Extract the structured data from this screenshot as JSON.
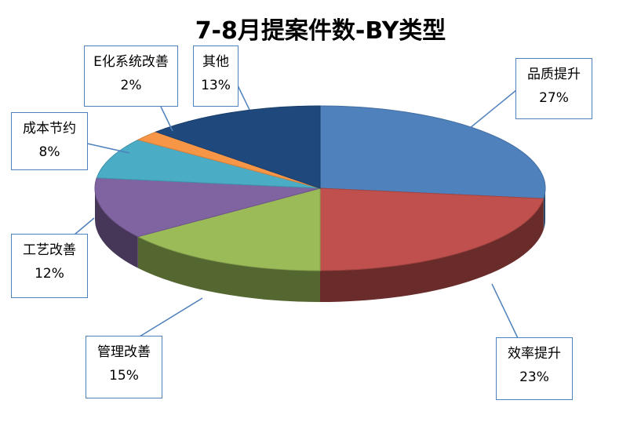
{
  "chart_data": {
    "type": "pie",
    "title": "7-8月提案件数-BY类型",
    "slices": [
      {
        "label": "品质提升",
        "value": 27,
        "value_label": "27%",
        "color": "#4f81bd"
      },
      {
        "label": "效率提升",
        "value": 23,
        "value_label": "23%",
        "color": "#c0504d"
      },
      {
        "label": "管理改善",
        "value": 15,
        "value_label": "15%",
        "color": "#9bbb59"
      },
      {
        "label": "工艺改善",
        "value": 12,
        "value_label": "12%",
        "color": "#8064a2"
      },
      {
        "label": "成本节约",
        "value": 8,
        "value_label": "8%",
        "color": "#4bacc6"
      },
      {
        "label": "E化系统改善",
        "value": 2,
        "value_label": "2%",
        "color": "#f79646"
      },
      {
        "label": "其他",
        "value": 13,
        "value_label": "13%",
        "color": "#1f497d"
      }
    ],
    "legend": "none",
    "style": "3d-pie-with-callouts"
  }
}
